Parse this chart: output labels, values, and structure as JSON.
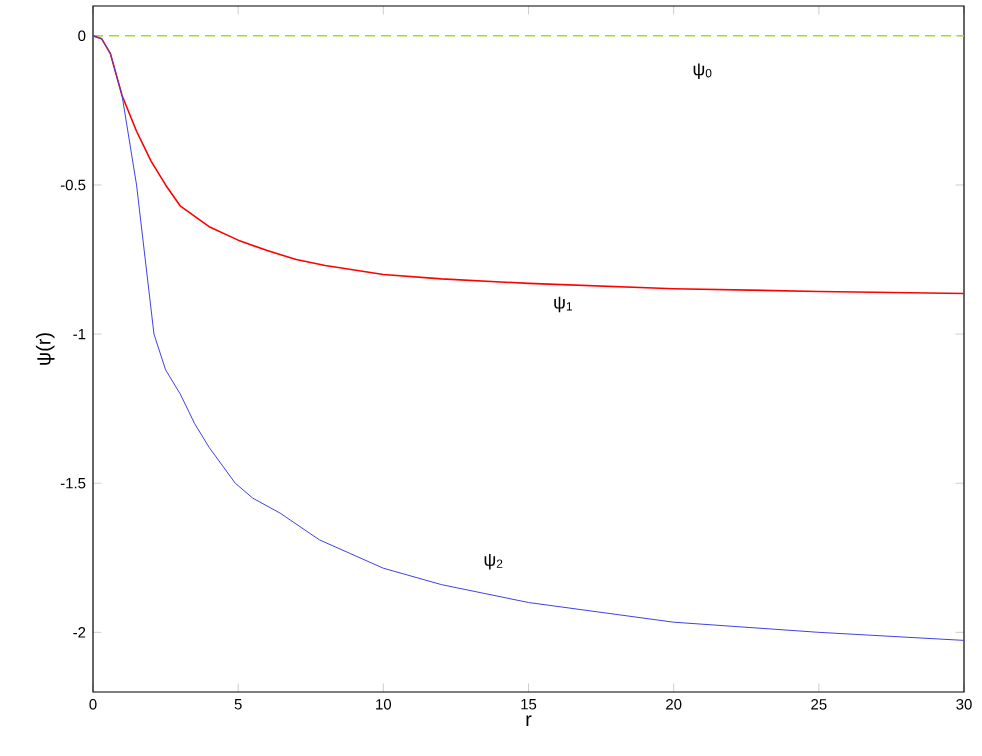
{
  "chart_data": {
    "type": "line",
    "xlabel": "r",
    "ylabel": "ψ(r)",
    "xlim": [
      0,
      30
    ],
    "ylim": [
      -2.2,
      0.1
    ],
    "xticks": [
      0,
      5,
      10,
      15,
      20,
      25,
      30
    ],
    "yticks": [
      -2,
      -1.5,
      -1,
      -0.5,
      0
    ],
    "grid": false,
    "marker": "none",
    "series": [
      {
        "name": "ψ$_{0}$",
        "color": "#99e033",
        "line_style": "dashed",
        "x": [
          0,
          30
        ],
        "values": [
          0,
          0
        ]
      },
      {
        "name": "ψ$_{1}$",
        "color": "#ff0000",
        "line_style": "solid",
        "x": [
          0,
          0.3,
          0.6,
          1,
          1.5,
          2,
          2.5,
          3,
          4,
          5,
          6,
          7,
          8,
          10,
          12,
          15,
          20,
          25,
          30
        ],
        "values": [
          0,
          -0.01,
          -0.06,
          -0.2,
          -0.32,
          -0.42,
          -0.5,
          -0.57,
          -0.64,
          -0.685,
          -0.72,
          -0.75,
          -0.77,
          -0.8,
          -0.815,
          -0.83,
          -0.848,
          -0.857,
          -0.864
        ]
      },
      {
        "name": "ψ$_{2}$",
        "color": "#4040e0",
        "line_style": "solid",
        "x": [
          0,
          0.3,
          0.6,
          1,
          1.5,
          2.1,
          2.5,
          3,
          3.5,
          4,
          4.9,
          5.5,
          6.44,
          7.8,
          10,
          12,
          15,
          20,
          25,
          30
        ],
        "values": [
          0,
          -0.01,
          -0.06,
          -0.2,
          -0.5,
          -1.0,
          -1.12,
          -1.2,
          -1.3,
          -1.38,
          -1.5,
          -1.55,
          -1.6,
          -1.69,
          -1.785,
          -1.84,
          -1.9,
          -1.966,
          -2.0,
          -2.027
        ]
      }
    ]
  }
}
